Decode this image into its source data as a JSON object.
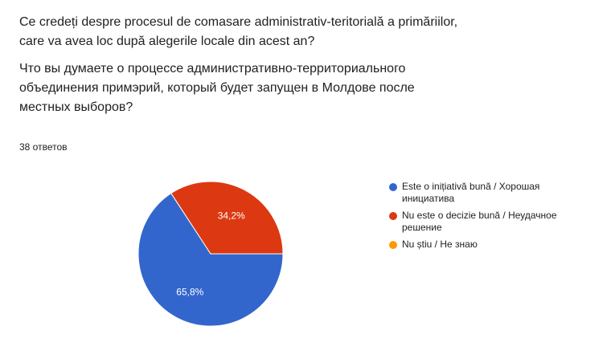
{
  "question": {
    "ro_lines": [
      "Ce credeți despre procesul de comasare administrativ-teritorială a primăriilor,",
      "care va avea loc după alegerile locale din acest an?"
    ],
    "ru_lines": [
      "Что вы думаете о процессе административно-территориального",
      "объединения примэрий, который будет запущен в Молдове после",
      "местных выборов?"
    ]
  },
  "responses_label": "38 ответов",
  "chart_data": {
    "type": "pie",
    "title": "",
    "slices": [
      {
        "label_lines": [
          "Este o inițiativă bună / Хорошая",
          "инициатива"
        ],
        "value": 65.8,
        "display": "65,8%",
        "color": "#3366cc"
      },
      {
        "label_lines": [
          "Nu este o decizie bună / Неудачное",
          "решение"
        ],
        "value": 34.2,
        "display": "34,2%",
        "color": "#dc3912"
      },
      {
        "label_lines": [
          "Nu știu / Не знаю"
        ],
        "value": 0,
        "display": "",
        "color": "#ff9900"
      }
    ],
    "legend_position": "right"
  }
}
